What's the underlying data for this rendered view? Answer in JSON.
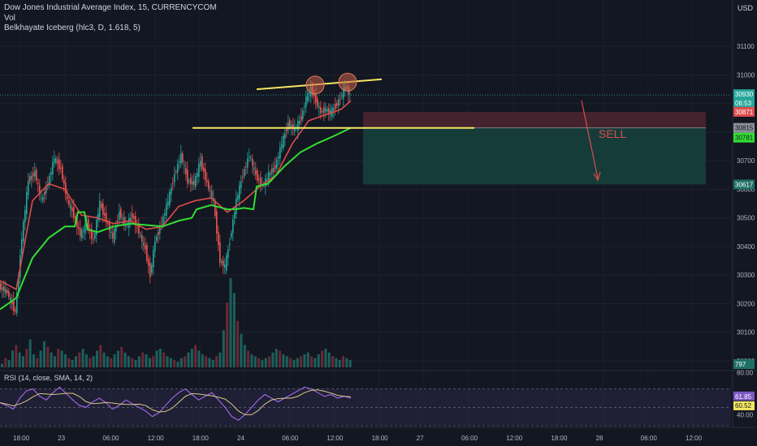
{
  "header": {
    "symbol": "Dow Jones Industrial Average Index, 15, CURRENCYCOM",
    "vol": "Vol",
    "indicator": "Belkhayate Iceberg (hlc3, D, 1.618, 5)",
    "currency": "USD"
  },
  "rsi": {
    "label": "RSI (14, close, SMA, 14, 2)",
    "axis_ticks": [
      "80.00",
      "40.00"
    ],
    "badges": [
      "61.85",
      "60.52"
    ]
  },
  "annotation": {
    "sell": "SELL"
  },
  "chart_data": [
    {
      "type": "candlestick",
      "title": "Dow Jones Industrial Average Index, 15, CURRENCYCOM",
      "ylim": [
        29980,
        31200
      ],
      "y_ticks": [
        "31100",
        "31000",
        "30900",
        "30800",
        "30700",
        "30600",
        "30500",
        "30400",
        "30300",
        "30200",
        "30100",
        "30000"
      ],
      "x_ticks": [
        "18:00",
        "23",
        "06:00",
        "12:00",
        "18:00",
        "24",
        "06:00",
        "12:00",
        "18:00",
        "27",
        "06:00",
        "12:00",
        "18:00",
        "28",
        "06:00",
        "12:00"
      ],
      "price_badges": {
        "last": "30930",
        "countdown": "06:53",
        "high_zone": "30871",
        "entry": "30815",
        "green": "30781",
        "target": "30617",
        "volume": "797"
      },
      "close_path": [
        [
          0,
          30260
        ],
        [
          10,
          30240
        ],
        [
          20,
          30170
        ],
        [
          28,
          30430
        ],
        [
          36,
          30630
        ],
        [
          44,
          30660
        ],
        [
          52,
          30560
        ],
        [
          60,
          30620
        ],
        [
          68,
          30710
        ],
        [
          76,
          30670
        ],
        [
          84,
          30560
        ],
        [
          92,
          30510
        ],
        [
          100,
          30440
        ],
        [
          108,
          30480
        ],
        [
          116,
          30420
        ],
        [
          124,
          30550
        ],
        [
          132,
          30490
        ],
        [
          140,
          30430
        ],
        [
          148,
          30520
        ],
        [
          156,
          30470
        ],
        [
          164,
          30510
        ],
        [
          172,
          30450
        ],
        [
          180,
          30390
        ],
        [
          186,
          30300
        ],
        [
          192,
          30420
        ],
        [
          200,
          30480
        ],
        [
          208,
          30560
        ],
        [
          216,
          30650
        ],
        [
          224,
          30720
        ],
        [
          232,
          30630
        ],
        [
          240,
          30620
        ],
        [
          248,
          30700
        ],
        [
          256,
          30620
        ],
        [
          264,
          30560
        ],
        [
          272,
          30350
        ],
        [
          278,
          30330
        ],
        [
          284,
          30420
        ],
        [
          292,
          30560
        ],
        [
          300,
          30650
        ],
        [
          308,
          30720
        ],
        [
          316,
          30650
        ],
        [
          324,
          30610
        ],
        [
          332,
          30650
        ],
        [
          340,
          30680
        ],
        [
          348,
          30760
        ],
        [
          356,
          30830
        ],
        [
          364,
          30810
        ],
        [
          372,
          30850
        ],
        [
          378,
          30920
        ],
        [
          384,
          30950
        ],
        [
          390,
          30910
        ],
        [
          396,
          30870
        ],
        [
          402,
          30880
        ],
        [
          408,
          30870
        ],
        [
          414,
          30890
        ],
        [
          420,
          30920
        ],
        [
          426,
          30960
        ],
        [
          432,
          30930
        ]
      ],
      "iceberg_red_line": [
        [
          0,
          30280
        ],
        [
          20,
          30250
        ],
        [
          40,
          30560
        ],
        [
          60,
          30620
        ],
        [
          80,
          30600
        ],
        [
          100,
          30510
        ],
        [
          120,
          30500
        ],
        [
          140,
          30480
        ],
        [
          160,
          30490
        ],
        [
          180,
          30460
        ],
        [
          200,
          30470
        ],
        [
          220,
          30540
        ],
        [
          240,
          30560
        ],
        [
          260,
          30570
        ],
        [
          280,
          30520
        ],
        [
          300,
          30560
        ],
        [
          320,
          30610
        ],
        [
          340,
          30650
        ],
        [
          360,
          30760
        ],
        [
          380,
          30840
        ],
        [
          400,
          30860
        ],
        [
          420,
          30880
        ],
        [
          432,
          30910
        ]
      ],
      "iceberg_green_line": [
        [
          0,
          30180
        ],
        [
          20,
          30220
        ],
        [
          40,
          30360
        ],
        [
          60,
          30430
        ],
        [
          80,
          30470
        ],
        [
          92,
          30470
        ],
        [
          96,
          30520
        ],
        [
          104,
          30520
        ],
        [
          108,
          30460
        ],
        [
          120,
          30450
        ],
        [
          140,
          30470
        ],
        [
          160,
          30480
        ],
        [
          180,
          30475
        ],
        [
          200,
          30470
        ],
        [
          220,
          30490
        ],
        [
          236,
          30500
        ],
        [
          242,
          30530
        ],
        [
          260,
          30545
        ],
        [
          280,
          30530
        ],
        [
          290,
          30530
        ],
        [
          300,
          30535
        ],
        [
          312,
          30530
        ],
        [
          316,
          30610
        ],
        [
          330,
          30620
        ],
        [
          350,
          30680
        ],
        [
          370,
          30730
        ],
        [
          390,
          30760
        ],
        [
          410,
          30785
        ],
        [
          432,
          30815
        ]
      ],
      "volume": [
        2,
        5,
        4,
        9,
        12,
        8,
        6,
        10,
        15,
        7,
        5,
        9,
        14,
        11,
        8,
        6,
        10,
        9,
        7,
        5,
        4,
        6,
        8,
        10,
        7,
        5,
        6,
        9,
        12,
        8,
        6,
        5,
        7,
        9,
        11,
        8,
        6,
        5,
        4,
        6,
        8,
        7,
        5,
        6,
        9,
        10,
        8,
        6,
        5,
        4,
        3,
        5,
        6,
        8,
        10,
        12,
        9,
        7,
        6,
        5,
        4,
        6,
        8,
        20,
        35,
        48,
        40,
        25,
        18,
        12,
        9,
        7,
        6,
        5,
        4,
        5,
        6,
        8,
        10,
        9,
        7,
        6,
        5,
        4,
        5,
        6,
        7,
        8,
        6,
        5,
        7,
        9,
        10,
        8,
        6,
        5,
        4,
        6,
        5,
        4
      ],
      "rsi": [
        55,
        52,
        48,
        60,
        68,
        70,
        62,
        58,
        66,
        72,
        65,
        58,
        52,
        50,
        56,
        60,
        55,
        48,
        52,
        58,
        54,
        50,
        46,
        40,
        44,
        52,
        60,
        66,
        70,
        64,
        58,
        62,
        66,
        58,
        50,
        40,
        36,
        42,
        50,
        58,
        64,
        60,
        56,
        60,
        64,
        68,
        72,
        70,
        66,
        62,
        64,
        60,
        62,
        60
      ],
      "rsi_ylim": [
        30,
        90
      ],
      "levels": {
        "neckline": 30815,
        "top_line_start": 30950,
        "top_line_end": 30985,
        "sell_stop_zone": [
          30815,
          30871
        ],
        "sell_target_zone": [
          30617,
          30815
        ]
      }
    }
  ]
}
